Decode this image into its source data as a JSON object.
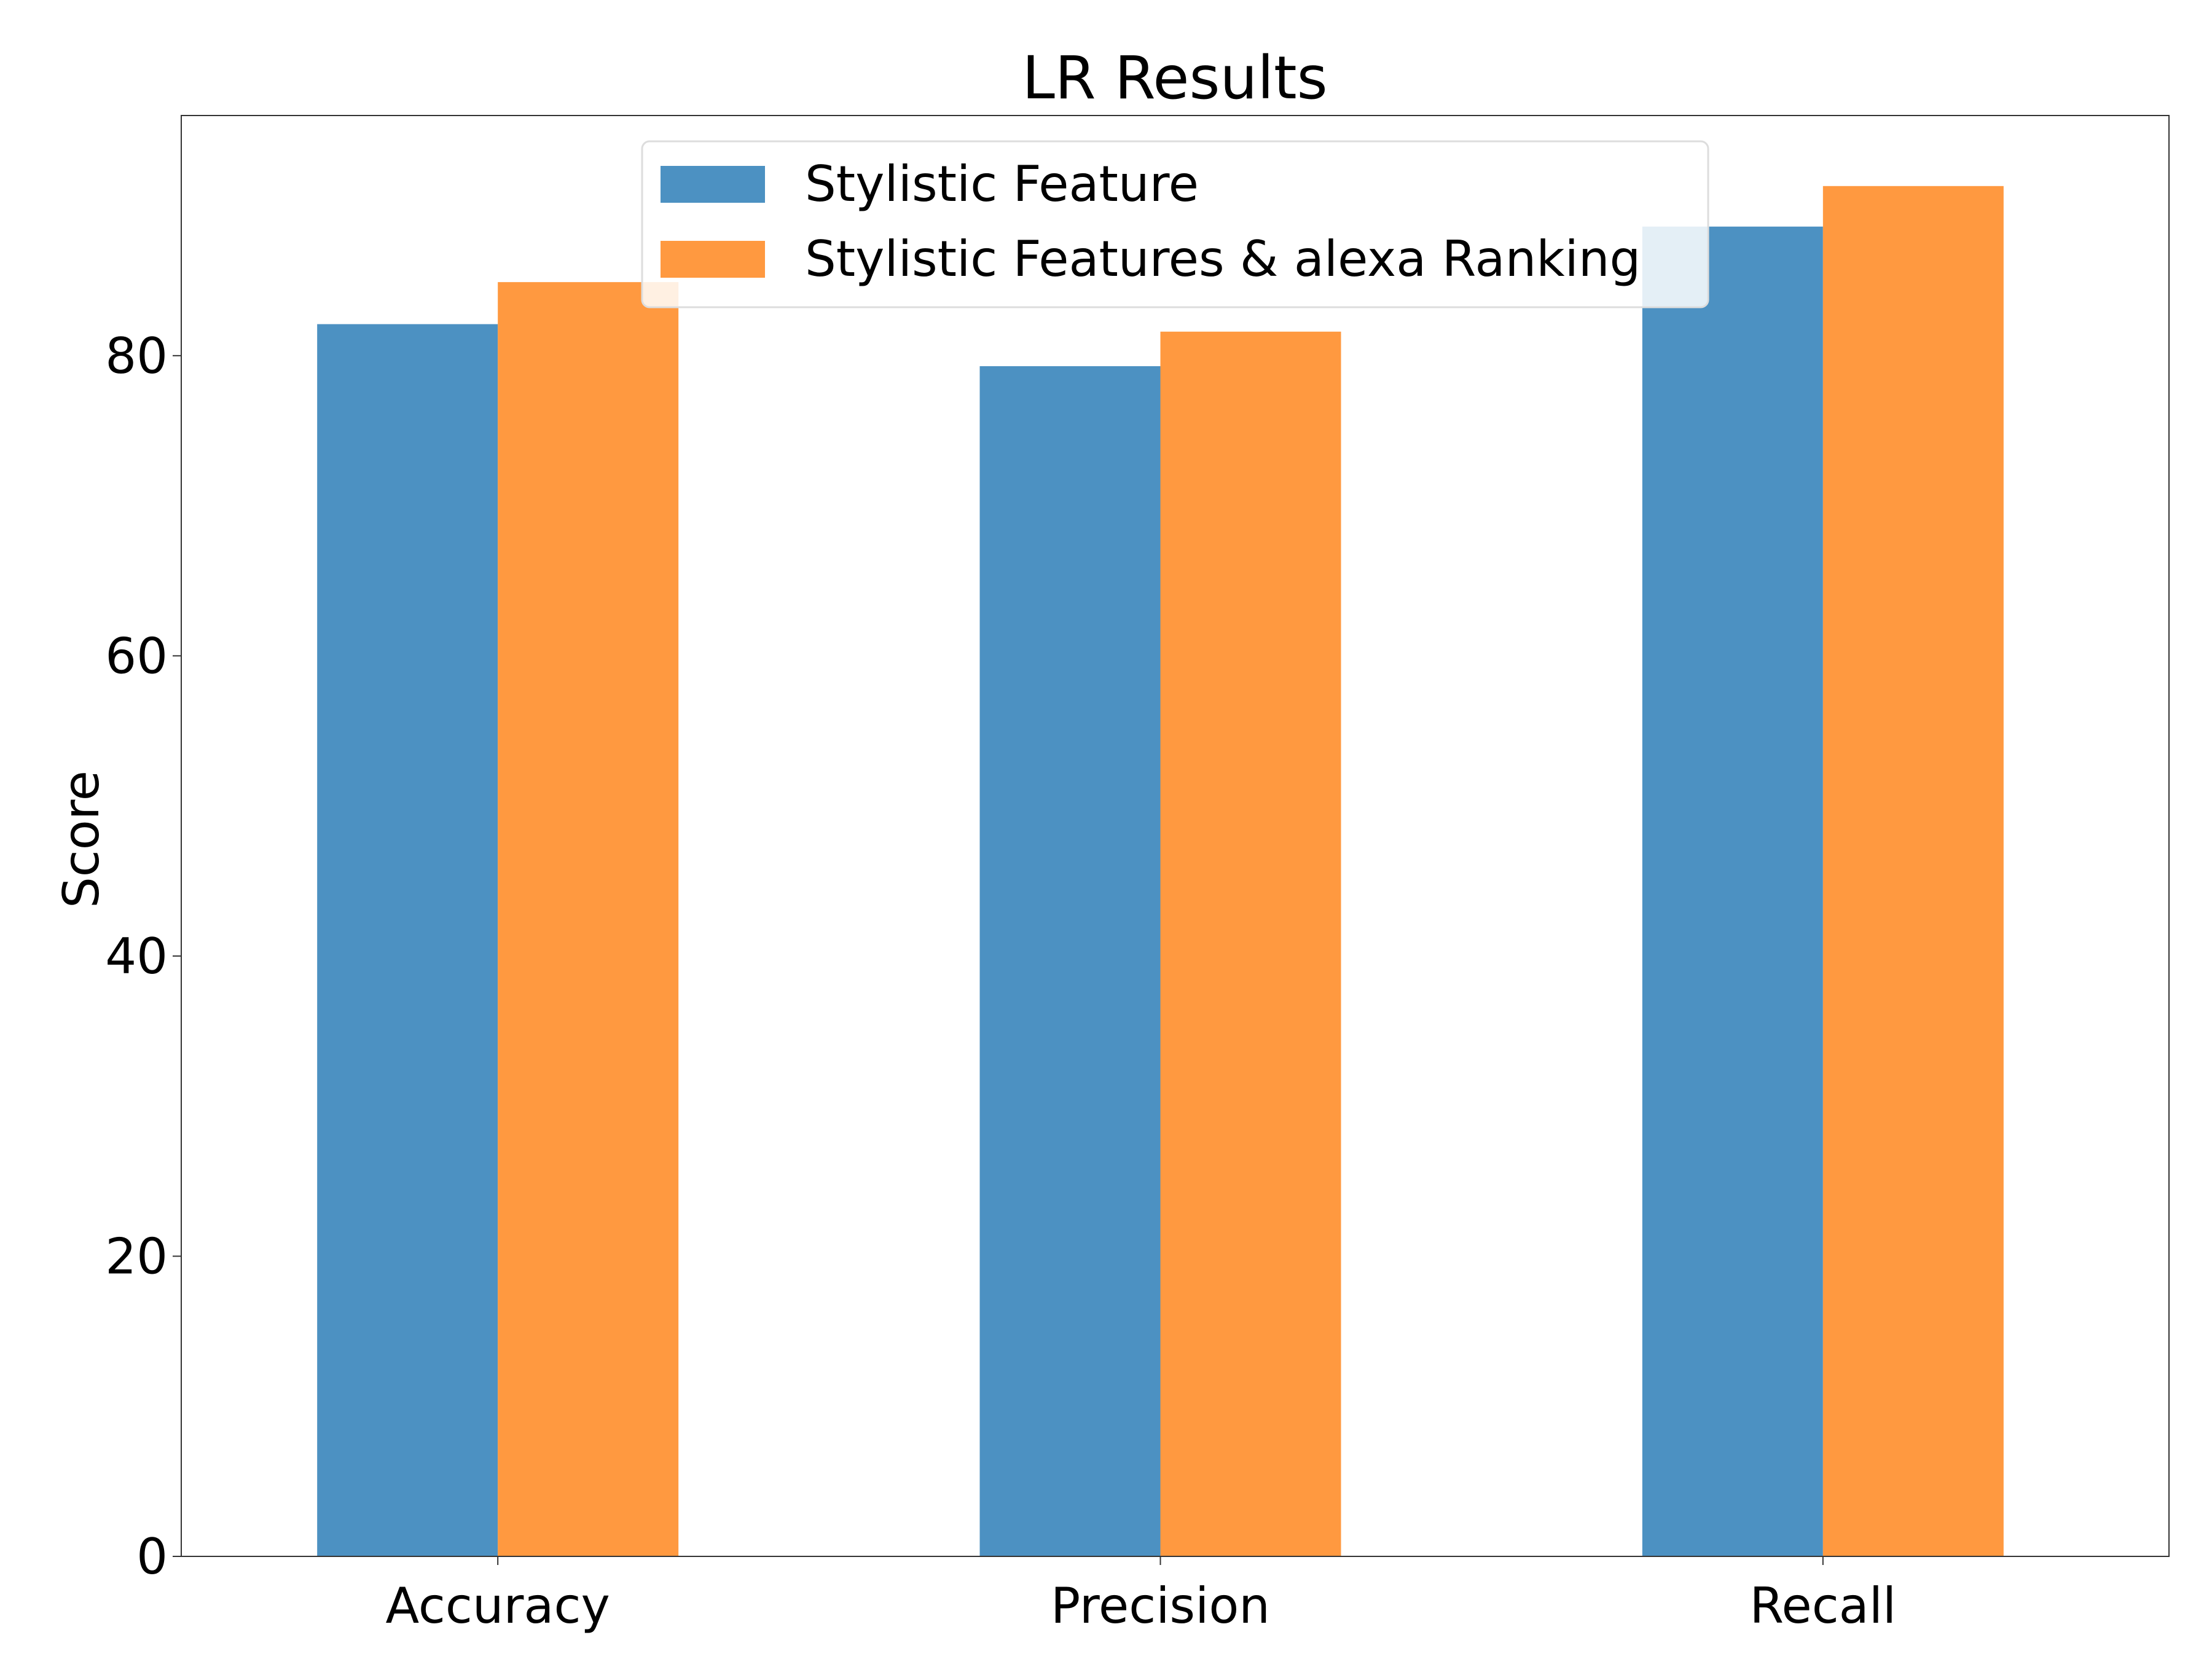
{
  "chart_data": {
    "type": "bar",
    "title": "LR Results",
    "xlabel": "",
    "ylabel": "Score",
    "categories": [
      "Accuracy",
      "Precision",
      "Recall"
    ],
    "series": [
      {
        "name": "Stylistic Feature",
        "values": [
          82.1,
          79.3,
          88.6
        ],
        "color": "#4c91c2"
      },
      {
        "name": "Stylistic Features & alexa Ranking",
        "values": [
          84.9,
          81.6,
          91.3
        ],
        "color": "#ff9940"
      }
    ],
    "ylim": [
      0,
      96
    ],
    "yticks": [
      0,
      20,
      40,
      60,
      80
    ],
    "grid": false,
    "legend_position": "top-center"
  }
}
